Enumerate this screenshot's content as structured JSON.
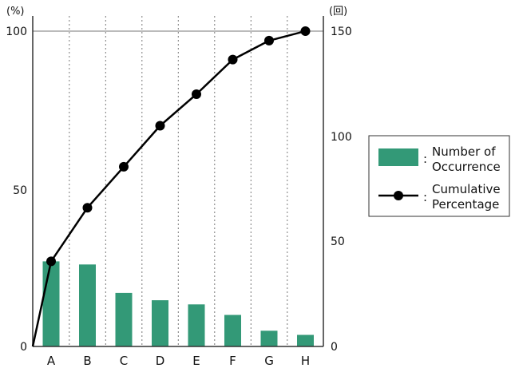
{
  "chart_data": {
    "type": "bar",
    "categories": [
      "A",
      "B",
      "C",
      "D",
      "E",
      "F",
      "G",
      "H"
    ],
    "left_axis": {
      "unit": "(%)",
      "ticks": [
        "0",
        "50",
        "100"
      ],
      "range": [
        0,
        100
      ]
    },
    "right_axis": {
      "unit": "(回)",
      "ticks": [
        "0",
        "50",
        "100",
        "150"
      ],
      "range": [
        0,
        150
      ]
    },
    "series": [
      {
        "name": "Number of Occurrence",
        "kind": "bar",
        "axis": "right",
        "color": "#339977",
        "values": [
          40.5,
          39,
          25.5,
          22,
          20,
          15,
          7.5,
          5.5
        ]
      },
      {
        "name": "Cumulative Percentage",
        "kind": "line",
        "axis": "left",
        "color": "#000000",
        "values": [
          27,
          44,
          57,
          70,
          80,
          91,
          97,
          100
        ]
      }
    ],
    "grid": "vertical dotted lines between categories",
    "legend_position": "right"
  },
  "legend": {
    "bar_label_line1": "Number of",
    "bar_label_line2": "Occurrence",
    "line_label_line1": "Cumulative",
    "line_label_line2": "Percentage",
    "separator": ":"
  },
  "colors": {
    "bar": "#339977",
    "line": "#000000",
    "grid": "#777777",
    "axis": "#333333"
  }
}
